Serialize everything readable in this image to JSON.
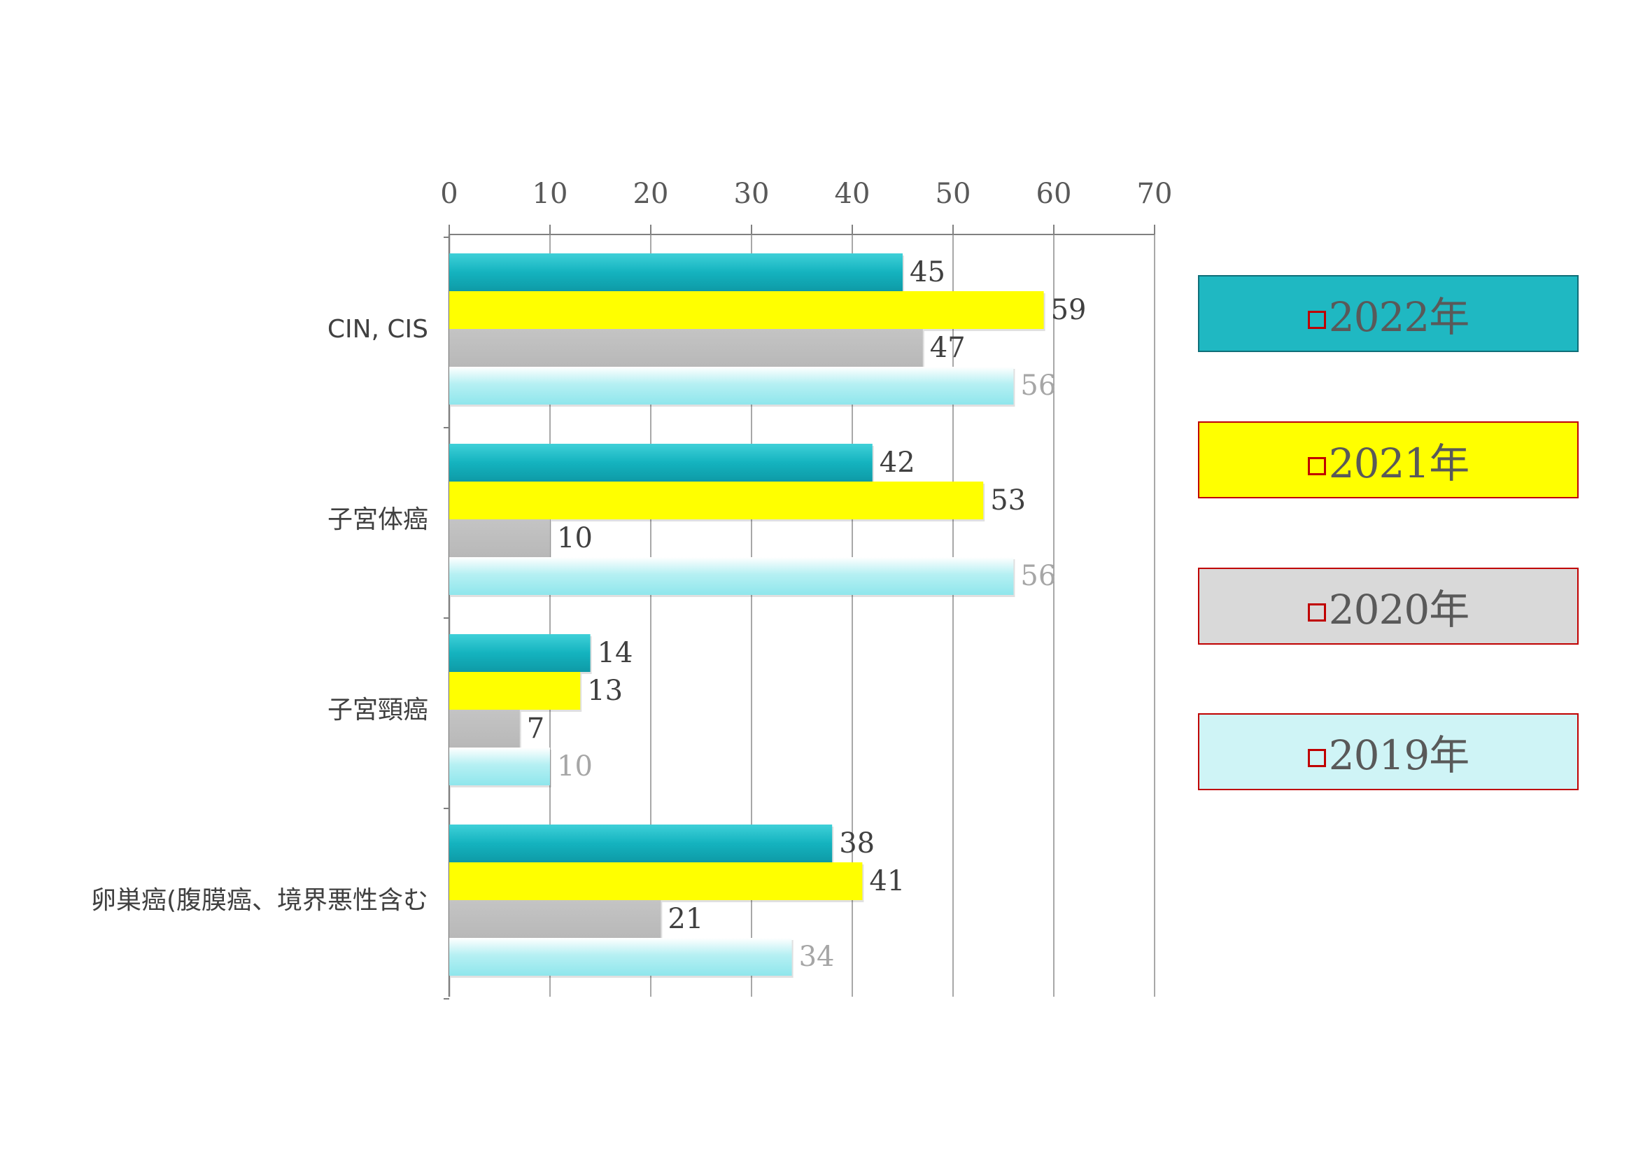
{
  "chart_data": {
    "type": "bar",
    "orientation": "horizontal",
    "categories": [
      "CIN, CIS",
      "子宮体癌",
      "子宮頸癌",
      "卵巣癌(腹膜癌、境界悪性含む"
    ],
    "series": [
      {
        "name": "2022年",
        "values": [
          45,
          42,
          14,
          38
        ],
        "color": "#1ab9c4"
      },
      {
        "name": "2021年",
        "values": [
          59,
          53,
          13,
          41
        ],
        "color": "#ffff00"
      },
      {
        "name": "2020年",
        "values": [
          47,
          10,
          7,
          21
        ],
        "color": "#bfbfbf"
      },
      {
        "name": "2019年",
        "values": [
          56,
          56,
          10,
          34
        ],
        "color": "#a8eef2"
      }
    ],
    "xlim": [
      0,
      70
    ],
    "xticks": [
      0,
      10,
      20,
      30,
      40,
      50,
      60,
      70
    ],
    "grid": true,
    "legend_position": "right",
    "title": "",
    "xlabel": "",
    "ylabel": ""
  },
  "legend": [
    {
      "label": "2022年",
      "bg": "#1fb8c2",
      "border": "#0f6e78"
    },
    {
      "label": "2021年",
      "bg": "#ffff00",
      "border": "#c00000"
    },
    {
      "label": "2020年",
      "bg": "#d9d9d9",
      "border": "#c00000"
    },
    {
      "label": "2019年",
      "bg": "#cff4f6",
      "border": "#c00000"
    }
  ],
  "colors": {
    "axis": "#808080",
    "grid": "#8c8c8c",
    "label_dark": "#404040",
    "label_light": "#a6a6a6",
    "legend_marker": "#c00000"
  }
}
